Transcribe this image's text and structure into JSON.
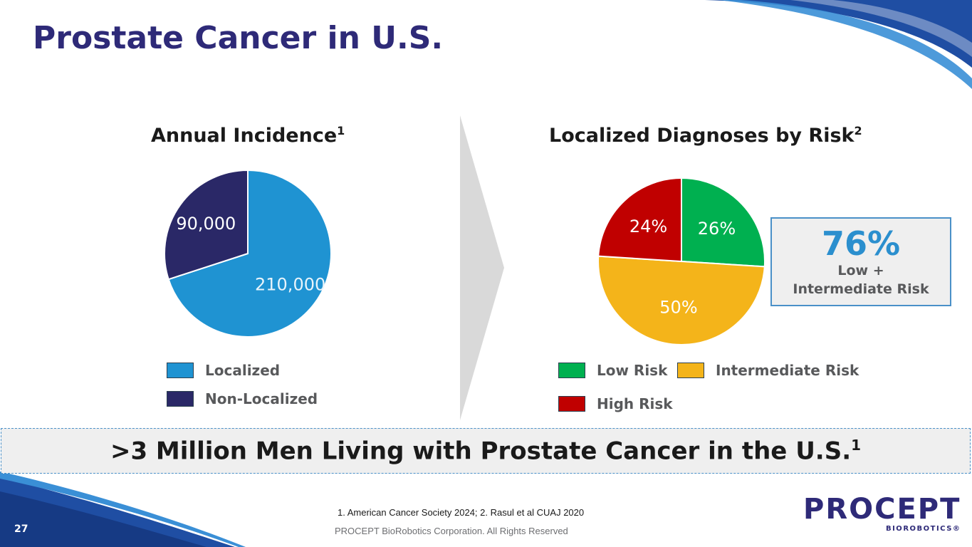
{
  "slide": {
    "title": "Prostate Cancer in U.S.",
    "page_number": "27"
  },
  "chart_data": [
    {
      "type": "pie",
      "title": "Annual Incidence",
      "title_superscript": "1",
      "slices": [
        {
          "label": "Localized",
          "value": 210000,
          "display": "210,000",
          "color": "#1f93d2"
        },
        {
          "label": "Non-Localized",
          "value": 90000,
          "display": "90,000",
          "color": "#2a2867"
        }
      ]
    },
    {
      "type": "pie",
      "title": "Localized Diagnoses by Risk",
      "title_superscript": "2",
      "slices": [
        {
          "label": "Low Risk",
          "value": 26,
          "display": "26%",
          "color": "#00b050"
        },
        {
          "label": "Intermediate Risk",
          "value": 50,
          "display": "50%",
          "color": "#f4b41a"
        },
        {
          "label": "High Risk",
          "value": 24,
          "display": "24%",
          "color": "#c00000"
        }
      ]
    }
  ],
  "callout": {
    "value": "76%",
    "label": "Low + Intermediate Risk"
  },
  "banner": {
    "text": ">3 Million Men Living with Prostate Cancer in the U.S.",
    "superscript": "1"
  },
  "footer": {
    "references": "1. American Cancer Society 2024; 2. Rasul et al CUAJ 2020",
    "copyright": "PROCEPT BioRobotics Corporation. All Rights Reserved"
  },
  "logo": {
    "main": "PROCEPT",
    "sub": "BIOROBOTICS®"
  },
  "colors": {
    "title": "#2e2a78",
    "accent_blue": "#1f93d2",
    "navy": "#2a2867",
    "callout_value": "#2b8fce"
  }
}
